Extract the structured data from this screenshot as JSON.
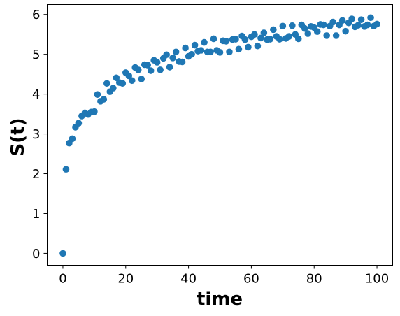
{
  "chart_data": {
    "type": "scatter",
    "title": "",
    "xlabel": "time",
    "ylabel": "S(t)",
    "xlim": [
      -5,
      105
    ],
    "ylim": [
      -0.3,
      6.25
    ],
    "xticks": [
      0,
      20,
      40,
      60,
      80,
      100
    ],
    "yticks": [
      0,
      1,
      2,
      3,
      4,
      5,
      6
    ],
    "xtick_labels": [
      "0",
      "20",
      "40",
      "60",
      "80",
      "100"
    ],
    "ytick_labels": [
      "0",
      "1",
      "2",
      "3",
      "4",
      "5",
      "6"
    ],
    "grid": false,
    "marker_color": "#1f77b4",
    "series": [
      {
        "x": [
          0,
          1,
          2,
          3,
          4,
          5,
          6,
          7,
          8,
          9,
          10,
          11,
          12,
          13,
          14,
          15,
          16,
          17,
          18,
          19,
          20,
          21,
          22,
          23,
          24,
          25,
          26,
          27,
          28,
          29,
          30,
          31,
          32,
          33,
          34,
          35,
          36,
          37,
          38,
          39,
          40,
          41,
          42,
          43,
          44,
          45,
          46,
          47,
          48,
          49,
          50,
          51,
          52,
          53,
          54,
          55,
          56,
          57,
          58,
          59,
          60,
          61,
          62,
          63,
          64,
          65,
          66,
          67,
          68,
          69,
          70,
          71,
          72,
          73,
          74,
          75,
          76,
          77,
          78,
          79,
          80,
          81,
          82,
          83,
          84,
          85,
          86,
          87,
          88,
          89,
          90,
          91,
          92,
          93,
          94,
          95,
          96,
          97,
          98,
          99,
          100
        ],
        "y": [
          0,
          2.11,
          2.77,
          2.88,
          3.17,
          3.27,
          3.45,
          3.53,
          3.49,
          3.55,
          3.56,
          3.99,
          3.82,
          3.87,
          4.27,
          4.06,
          4.15,
          4.41,
          4.29,
          4.27,
          4.54,
          4.46,
          4.34,
          4.67,
          4.61,
          4.38,
          4.74,
          4.73,
          4.59,
          4.85,
          4.8,
          4.61,
          4.9,
          4.99,
          4.68,
          4.91,
          5.06,
          4.82,
          4.81,
          5.16,
          4.95,
          5.0,
          5.23,
          5.08,
          5.1,
          5.3,
          5.06,
          5.06,
          5.39,
          5.1,
          5.05,
          5.34,
          5.33,
          5.06,
          5.37,
          5.38,
          5.13,
          5.46,
          5.37,
          5.18,
          5.44,
          5.5,
          5.21,
          5.41,
          5.54,
          5.37,
          5.38,
          5.62,
          5.45,
          5.38,
          5.71,
          5.4,
          5.45,
          5.72,
          5.5,
          5.39,
          5.74,
          5.65,
          5.52,
          5.7,
          5.67,
          5.57,
          5.75,
          5.74,
          5.47,
          5.71,
          5.81,
          5.47,
          5.74,
          5.85,
          5.58,
          5.79,
          5.89,
          5.69,
          5.73,
          5.87,
          5.7,
          5.74,
          5.92,
          5.71,
          5.76
        ]
      }
    ]
  }
}
